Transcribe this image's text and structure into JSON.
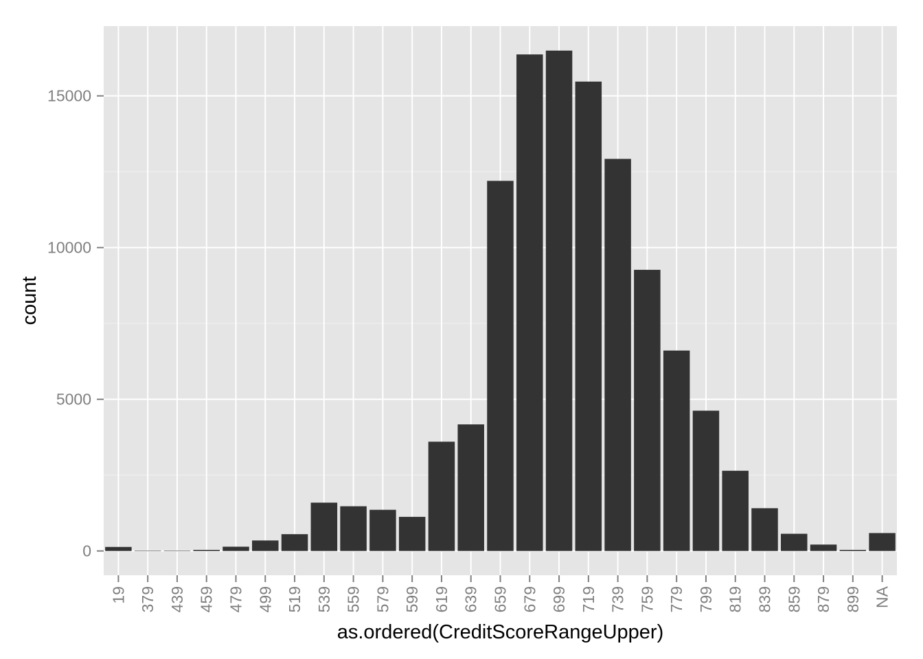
{
  "chart_data": {
    "type": "bar",
    "title": "",
    "xlabel": "as.ordered(CreditScoreRangeUpper)",
    "ylabel": "count",
    "categories": [
      "19",
      "379",
      "439",
      "459",
      "479",
      "499",
      "519",
      "539",
      "559",
      "579",
      "599",
      "619",
      "639",
      "659",
      "679",
      "699",
      "719",
      "739",
      "759",
      "779",
      "799",
      "819",
      "839",
      "859",
      "879",
      "899",
      "NA"
    ],
    "values": [
      133,
      1,
      5,
      36,
      141,
      346,
      554,
      1593,
      1474,
      1357,
      1125,
      3602,
      4172,
      12199,
      16366,
      16492,
      15471,
      12923,
      9267,
      6606,
      4624,
      2644,
      1410,
      567,
      211,
      36,
      591
    ],
    "ylim": [
      -800,
      17300
    ],
    "yticks": [
      0,
      5000,
      10000,
      15000
    ],
    "yticklabels": [
      "0",
      "5000",
      "10000",
      "15000"
    ],
    "yminor": [
      2500,
      7500,
      12500
    ],
    "grid": true,
    "legend": "none",
    "colors": {
      "panel": "#e5e5e5",
      "grid_major": "#ffffff",
      "grid_minor": "#f2f2f2",
      "bar": "#333333",
      "tick_text": "#7f7f7f",
      "axis_title": "#000000"
    }
  }
}
